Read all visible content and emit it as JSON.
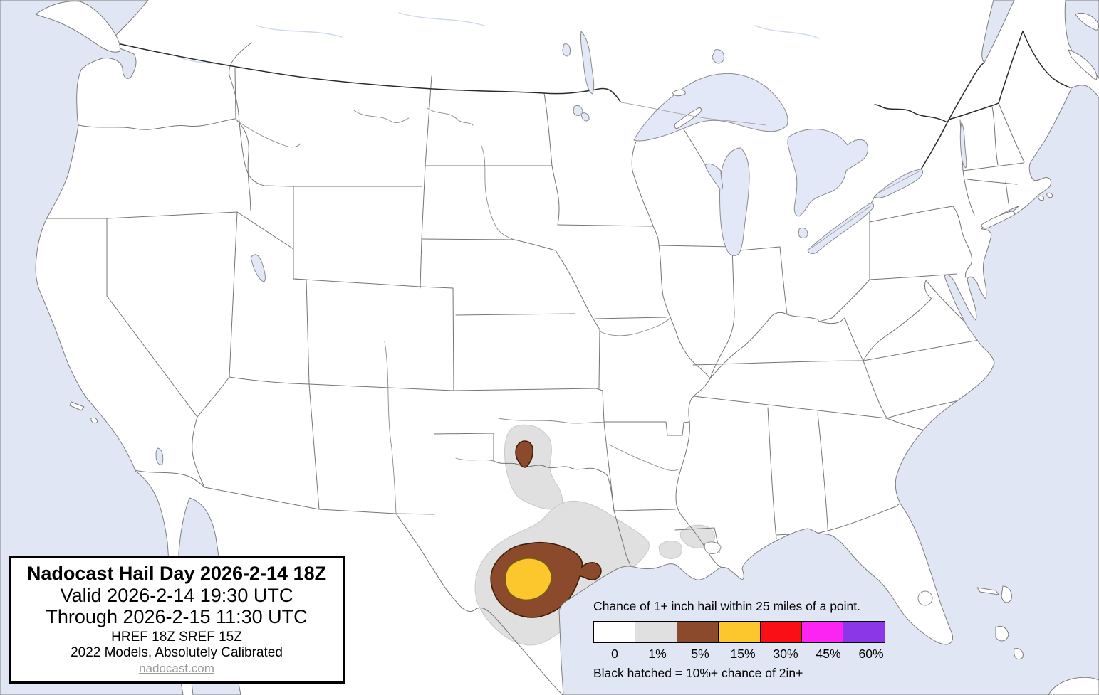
{
  "map": {
    "region": "Continental United States hail outlook map",
    "colors": {
      "water": "#e1e6f4",
      "land": "#ffffff",
      "state_border": "#757575",
      "country_border": "#2a2a2a",
      "lake_fill": "#e2e8f7",
      "contour_1pct": "#e0e0e0",
      "contour_1pct_edge": "#c9c9c9",
      "contour_5pct": "#8b4a2b",
      "contour_5pct_edge": "#40200a",
      "contour_15pct": "#fcc62d",
      "contour_15pct_edge": "#6f5f12"
    },
    "contours": [
      {
        "level": "1%",
        "area": "southwest Oklahoma along the Red River"
      },
      {
        "level": "5%",
        "area": "small area on the Red River, southwest Oklahoma / north Texas"
      },
      {
        "level": "1%",
        "area": "large area over central and south-central Texas to the coast"
      },
      {
        "level": "5%",
        "area": "south-central Texas with small eastern lobe"
      },
      {
        "level": "15%",
        "area": "core over south-central Texas"
      },
      {
        "level": "1%",
        "area": "two small areas over southern Louisiana"
      }
    ]
  },
  "title_box": {
    "line1": "Nadocast Hail Day 2026-2-14 18Z",
    "line2": "Valid 2026-2-14 19:30 UTC",
    "line3": "Through 2026-2-15 11:30 UTC",
    "line4": "HREF 18Z SREF 15Z",
    "line5": "2022 Models, Absolutely Calibrated",
    "link": "nadocast.com"
  },
  "legend": {
    "title": "Chance of 1+ inch hail within 25 miles of a point.",
    "entries": [
      {
        "label": "0",
        "color": "#ffffff"
      },
      {
        "label": "1%",
        "color": "#e0e0e0"
      },
      {
        "label": "5%",
        "color": "#8b4a2b"
      },
      {
        "label": "15%",
        "color": "#fcc62d"
      },
      {
        "label": "30%",
        "color": "#f90f15"
      },
      {
        "label": "45%",
        "color": "#fb24f3"
      },
      {
        "label": "60%",
        "color": "#8b37e8"
      }
    ],
    "note": "Black hatched = 10%+ chance of 2in+"
  }
}
